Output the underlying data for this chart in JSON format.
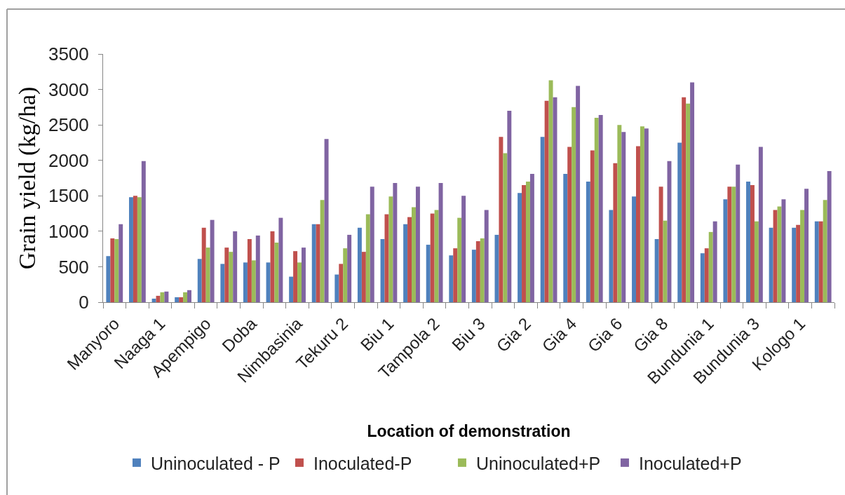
{
  "chart_data": {
    "type": "bar",
    "xlabel": "Location of demonstration",
    "ylabel": "Grain yield (kg/ha)",
    "categories": [
      "Manyoro",
      null,
      "Naaga 1",
      null,
      "Apempigo",
      null,
      "Doba",
      null,
      "Nimbasinia",
      null,
      "Tekuru 2",
      null,
      "Biu 1",
      null,
      "Tampola 2",
      null,
      "Biu 3",
      null,
      "Gia 2",
      null,
      "Gia 4",
      null,
      "Gia 6",
      null,
      "Gia 8",
      null,
      "Bundunia 1",
      null,
      "Bundunia 3",
      null,
      "Kologo 1",
      null
    ],
    "series": [
      {
        "name": "Uninoculated - P",
        "color": "#4f81bd",
        "values": [
          650,
          1480,
          50,
          70,
          610,
          540,
          560,
          560,
          360,
          1100,
          390,
          1050,
          890,
          1100,
          810,
          660,
          740,
          950,
          1540,
          2330,
          1810,
          1700,
          1300,
          1490,
          890,
          2250,
          690,
          1450,
          1700,
          1050,
          1050,
          1140
        ]
      },
      {
        "name": "Inoculated-P",
        "color": "#c0504d",
        "values": [
          900,
          1500,
          90,
          70,
          1050,
          770,
          890,
          1000,
          720,
          1100,
          540,
          710,
          1240,
          1200,
          1250,
          760,
          860,
          2330,
          1650,
          2840,
          2190,
          2140,
          1960,
          2200,
          1630,
          2890,
          760,
          1630,
          1650,
          1300,
          1090,
          1140
        ]
      },
      {
        "name": "Uninoculated+P",
        "color": "#9bbb59",
        "values": [
          890,
          1480,
          140,
          140,
          770,
          710,
          590,
          840,
          560,
          1440,
          760,
          1240,
          1490,
          1340,
          1300,
          1190,
          900,
          2100,
          1700,
          3130,
          2750,
          2600,
          2500,
          2480,
          1150,
          2800,
          990,
          1630,
          1140,
          1350,
          1300,
          1440
        ]
      },
      {
        "name": "Inoculated+P",
        "color": "#8064a2",
        "values": [
          1100,
          1990,
          150,
          170,
          1160,
          1000,
          940,
          1190,
          770,
          2300,
          950,
          1630,
          1680,
          1630,
          1680,
          1500,
          1300,
          2700,
          1810,
          2890,
          3050,
          2640,
          2400,
          2450,
          1990,
          3100,
          1140,
          1940,
          2190,
          1450,
          1600,
          1850
        ]
      }
    ],
    "ylim": [
      0,
      3500
    ],
    "yticks": [
      0,
      500,
      1000,
      1500,
      2000,
      2500,
      3000,
      3500
    ],
    "grid": false,
    "legend": "bottom"
  }
}
